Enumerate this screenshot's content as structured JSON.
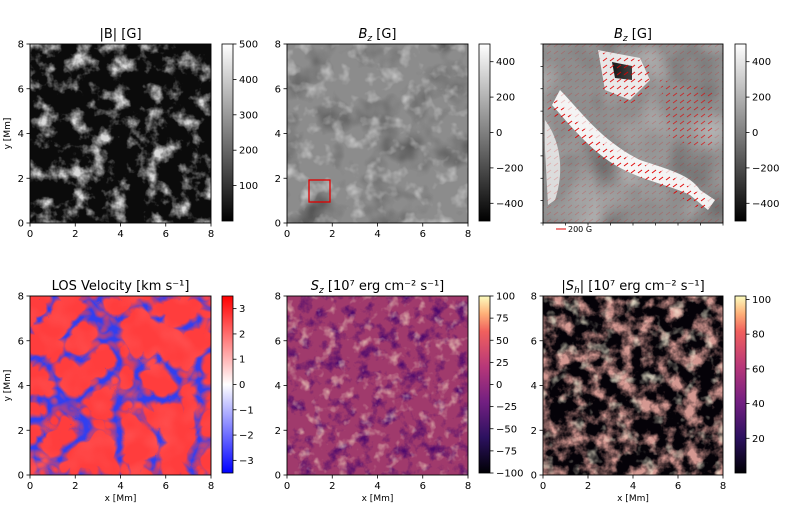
{
  "figure": {
    "panels": [
      {
        "id": "p1",
        "title": "|B| [G]",
        "colormap": "gray",
        "ylabel": "y [Mm]",
        "xlabel": "",
        "show_xticks": true,
        "show_yticks": true
      },
      {
        "id": "p2",
        "title": "B_z [G]",
        "colormap": "gray",
        "ylabel": "",
        "xlabel": "",
        "show_xticks": true,
        "show_yticks": true
      },
      {
        "id": "p3",
        "title": "B_z [G]",
        "colormap": "gray",
        "ylabel": "",
        "xlabel": "",
        "show_xticks": false,
        "show_yticks": false,
        "quiver_key": "200 G"
      },
      {
        "id": "p4",
        "title": "LOS Velocity [km s⁻¹]",
        "colormap": "bwr",
        "ylabel": "y [Mm]",
        "xlabel": "x [Mm]",
        "show_xticks": true,
        "show_yticks": true
      },
      {
        "id": "p5",
        "title": "S_z [10⁷ erg cm⁻² s⁻¹]",
        "colormap": "magma",
        "ylabel": "",
        "xlabel": "x [Mm]",
        "show_xticks": true,
        "show_yticks": true
      },
      {
        "id": "p6",
        "title": "|S_h| [10⁷ erg cm⁻² s⁻¹]",
        "colormap": "magma",
        "ylabel": "",
        "xlabel": "x [Mm]",
        "show_xticks": true,
        "show_yticks": true
      }
    ],
    "colorbars": [
      {
        "id": "c1",
        "min": 0,
        "max": 500,
        "ticks": [
          "100",
          "200",
          "300",
          "400",
          "500"
        ],
        "tick_values": [
          100,
          200,
          300,
          400,
          500
        ]
      },
      {
        "id": "c2",
        "min": -500,
        "max": 500,
        "ticks": [
          "−400",
          "−200",
          "0",
          "200",
          "400"
        ],
        "tick_values": [
          -400,
          -200,
          0,
          200,
          400
        ]
      },
      {
        "id": "c3",
        "min": -500,
        "max": 500,
        "ticks": [
          "−400",
          "−200",
          "0",
          "200",
          "400"
        ],
        "tick_values": [
          -400,
          -200,
          0,
          200,
          400
        ]
      },
      {
        "id": "c4",
        "min": -3.5,
        "max": 3.5,
        "ticks": [
          "−3",
          "−2",
          "−1",
          "0",
          "1",
          "2",
          "3"
        ],
        "tick_values": [
          -3,
          -2,
          -1,
          0,
          1,
          2,
          3
        ]
      },
      {
        "id": "c5",
        "min": -100,
        "max": 100,
        "ticks": [
          "−100",
          "−75",
          "−50",
          "−25",
          "0",
          "25",
          "50",
          "75",
          "100"
        ],
        "tick_values": [
          -100,
          -75,
          -50,
          -25,
          0,
          25,
          50,
          75,
          100
        ]
      },
      {
        "id": "c6",
        "min": 0,
        "max": 102,
        "ticks": [
          "20",
          "40",
          "60",
          "80",
          "100"
        ],
        "tick_values": [
          20,
          40,
          60,
          80,
          100
        ]
      }
    ]
  },
  "chart_data": [
    {
      "type": "heatmap",
      "title": "|B| [G]",
      "ylabel": "y [Mm]",
      "xlim": [
        0,
        8
      ],
      "ylim": [
        0,
        8
      ],
      "x_ticks": [
        "0",
        "2",
        "4",
        "6",
        "8"
      ],
      "y_ticks": [
        "0",
        "2",
        "4",
        "6",
        "8"
      ],
      "colorbar_range": [
        0,
        500
      ]
    },
    {
      "type": "heatmap",
      "title": "B_z [G]",
      "xlim": [
        0,
        8
      ],
      "ylim": [
        0,
        8
      ],
      "x_ticks": [
        "0",
        "2",
        "4",
        "6",
        "8"
      ],
      "y_ticks": [
        "0",
        "2",
        "4",
        "6",
        "8"
      ],
      "colorbar_range": [
        -500,
        500
      ],
      "highlight_box_mm": {
        "x": [
          1.0,
          1.9
        ],
        "y": [
          1.0,
          1.9
        ]
      }
    },
    {
      "type": "heatmap",
      "title": "B_z [G]",
      "colorbar_range": [
        -500,
        500
      ],
      "quiver_key": "200 G"
    },
    {
      "type": "heatmap",
      "title": "LOS Velocity [km s⁻¹]",
      "xlabel": "x [Mm]",
      "ylabel": "y [Mm]",
      "xlim": [
        0,
        8
      ],
      "ylim": [
        0,
        8
      ],
      "x_ticks": [
        "0",
        "2",
        "4",
        "6",
        "8"
      ],
      "y_ticks": [
        "0",
        "2",
        "4",
        "6",
        "8"
      ],
      "colorbar_range": [
        -3.5,
        3.5
      ]
    },
    {
      "type": "heatmap",
      "title": "S_z [10⁷ erg cm⁻² s⁻¹]",
      "xlabel": "x [Mm]",
      "xlim": [
        0,
        8
      ],
      "ylim": [
        0,
        8
      ],
      "x_ticks": [
        "0",
        "2",
        "4",
        "6",
        "8"
      ],
      "y_ticks": [
        "0",
        "2",
        "4",
        "6",
        "8"
      ],
      "colorbar_range": [
        -100,
        100
      ]
    },
    {
      "type": "heatmap",
      "title": "|S_h| [10⁷ erg cm⁻² s⁻¹]",
      "xlabel": "x [Mm]",
      "xlim": [
        0,
        8
      ],
      "ylim": [
        0,
        8
      ],
      "x_ticks": [
        "0",
        "2",
        "4",
        "6",
        "8"
      ],
      "y_ticks": [
        "0",
        "2",
        "4",
        "6",
        "8"
      ],
      "colorbar_range": [
        0,
        102
      ]
    }
  ]
}
